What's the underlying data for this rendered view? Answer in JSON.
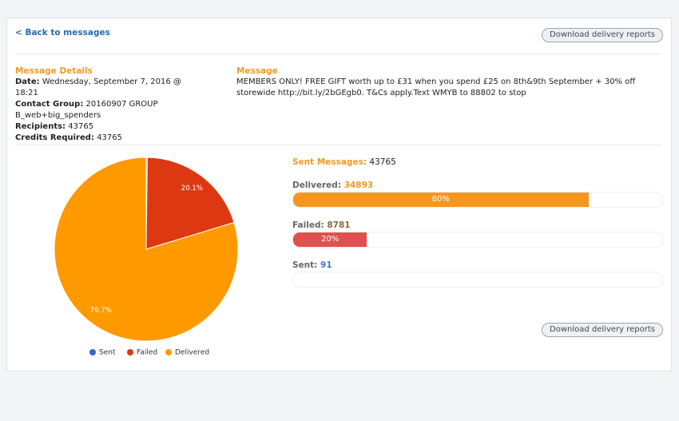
{
  "back_link": "< Back to messages",
  "download_button_top": "Download delivery reports",
  "download_button_bottom": "Download delivery reports",
  "details": {
    "heading": "Message Details",
    "rows": [
      {
        "label": "Date:",
        "value": "Wednesday, September 7, 2016 @ 18:21"
      },
      {
        "label": "Contact Group:",
        "value": "20160907 GROUP B_web+big_spenders"
      },
      {
        "label": "Recipients:",
        "value": "43765"
      },
      {
        "label": "Credits Required:",
        "value": "43765"
      }
    ]
  },
  "message": {
    "heading": "Message",
    "text": "MEMBERS ONLY! FREE GIFT worth up to £31 when you spend £25 on 8th&9th September + 30% off storewide http://bit.ly/2bGEgb0. T&Cs apply.Text WMYB to 88802 to stop"
  },
  "stats": {
    "sent_messages_label": "Sent Messages:",
    "sent_messages_value": "43765",
    "bars": [
      {
        "name": "Delivered:",
        "count": "34893",
        "percent": 80,
        "percent_label": "80%",
        "color": "#f7961e",
        "count_color": "#f7961e"
      },
      {
        "name": "Failed:",
        "count": "8781",
        "percent": 20,
        "percent_label": "20%",
        "color": "#e0504e",
        "count_color": "#8a6a3a"
      },
      {
        "name": "Sent:",
        "count": "91",
        "percent": 0,
        "percent_label": null,
        "color": "#3a78c3",
        "count_color": "#3a78c3"
      }
    ]
  },
  "chart_data": {
    "type": "pie",
    "categories": [
      "Sent",
      "Failed",
      "Delivered"
    ],
    "values": [
      0.2,
      20.1,
      79.7
    ],
    "value_labels": [
      null,
      "20.1%",
      "79.7%"
    ],
    "colors": [
      "#3366cc",
      "#dc3912",
      "#ff9900"
    ],
    "legend": "bottom"
  }
}
